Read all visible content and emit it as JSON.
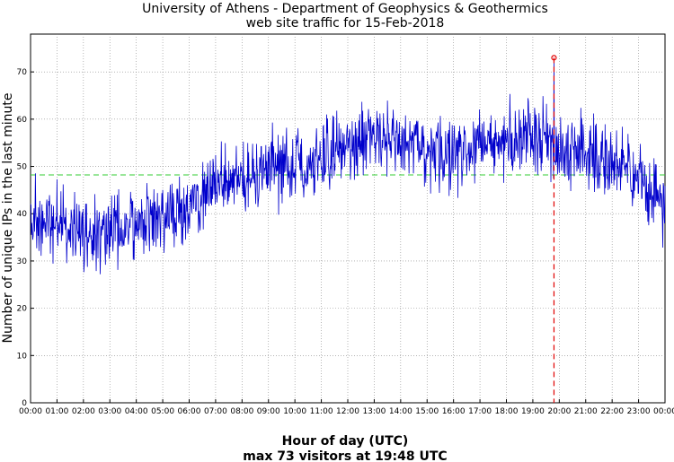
{
  "chart_data": {
    "type": "line",
    "title": "University of Athens - Department of Geophysics & Geothermics",
    "subtitle": "web site traffic for 15-Feb-2018",
    "xlabel": "Hour of day (UTC)",
    "footer": "max 73 visitors at 19:48 UTC",
    "ylabel": "Number of unique IPs in the last minute",
    "x_ticks": [
      "00:00",
      "01:00",
      "02:00",
      "03:00",
      "04:00",
      "05:00",
      "06:00",
      "07:00",
      "08:00",
      "09:00",
      "10:00",
      "11:00",
      "12:00",
      "13:00",
      "14:00",
      "15:00",
      "16:00",
      "17:00",
      "18:00",
      "19:00",
      "20:00",
      "21:00",
      "22:00",
      "23:00",
      "00:00"
    ],
    "y_ticks": [
      0,
      10,
      20,
      30,
      40,
      50,
      60,
      70
    ],
    "xlim_hours": [
      0,
      24
    ],
    "ylim": [
      0,
      78
    ],
    "grid": true,
    "series_color": "#0000cc",
    "mean_value": 48.2,
    "mean_color": "#33cc33",
    "max": {
      "time": "19:48",
      "hour": 19.8,
      "value": 73,
      "color": "#e00000"
    },
    "trend_points": [
      {
        "hour": 0.0,
        "value": 39
      },
      {
        "hour": 0.5,
        "value": 39
      },
      {
        "hour": 1.0,
        "value": 38
      },
      {
        "hour": 1.5,
        "value": 37
      },
      {
        "hour": 2.0,
        "value": 36
      },
      {
        "hour": 2.5,
        "value": 36
      },
      {
        "hour": 3.0,
        "value": 36
      },
      {
        "hour": 3.5,
        "value": 37
      },
      {
        "hour": 4.0,
        "value": 38
      },
      {
        "hour": 4.5,
        "value": 39
      },
      {
        "hour": 5.0,
        "value": 40
      },
      {
        "hour": 5.5,
        "value": 40
      },
      {
        "hour": 6.0,
        "value": 42
      },
      {
        "hour": 6.5,
        "value": 43
      },
      {
        "hour": 7.0,
        "value": 46
      },
      {
        "hour": 7.5,
        "value": 47
      },
      {
        "hour": 8.0,
        "value": 48
      },
      {
        "hour": 8.5,
        "value": 49
      },
      {
        "hour": 9.0,
        "value": 49
      },
      {
        "hour": 9.5,
        "value": 50
      },
      {
        "hour": 10.0,
        "value": 51
      },
      {
        "hour": 10.5,
        "value": 51
      },
      {
        "hour": 11.0,
        "value": 52
      },
      {
        "hour": 11.5,
        "value": 53
      },
      {
        "hour": 12.0,
        "value": 54
      },
      {
        "hour": 12.5,
        "value": 55
      },
      {
        "hour": 13.0,
        "value": 57
      },
      {
        "hour": 13.5,
        "value": 56
      },
      {
        "hour": 14.0,
        "value": 55
      },
      {
        "hour": 14.5,
        "value": 54
      },
      {
        "hour": 15.0,
        "value": 52
      },
      {
        "hour": 15.5,
        "value": 52
      },
      {
        "hour": 16.0,
        "value": 53
      },
      {
        "hour": 16.5,
        "value": 54
      },
      {
        "hour": 17.0,
        "value": 55
      },
      {
        "hour": 17.5,
        "value": 54
      },
      {
        "hour": 18.0,
        "value": 55
      },
      {
        "hour": 18.5,
        "value": 56
      },
      {
        "hour": 19.0,
        "value": 57
      },
      {
        "hour": 19.5,
        "value": 57
      },
      {
        "hour": 20.0,
        "value": 53
      },
      {
        "hour": 20.5,
        "value": 53
      },
      {
        "hour": 21.0,
        "value": 54
      },
      {
        "hour": 21.5,
        "value": 52
      },
      {
        "hour": 22.0,
        "value": 51
      },
      {
        "hour": 22.5,
        "value": 49
      },
      {
        "hour": 23.0,
        "value": 47
      },
      {
        "hour": 23.5,
        "value": 45
      },
      {
        "hour": 24.0,
        "value": 42
      }
    ],
    "noise_amplitude": 4.5
  }
}
